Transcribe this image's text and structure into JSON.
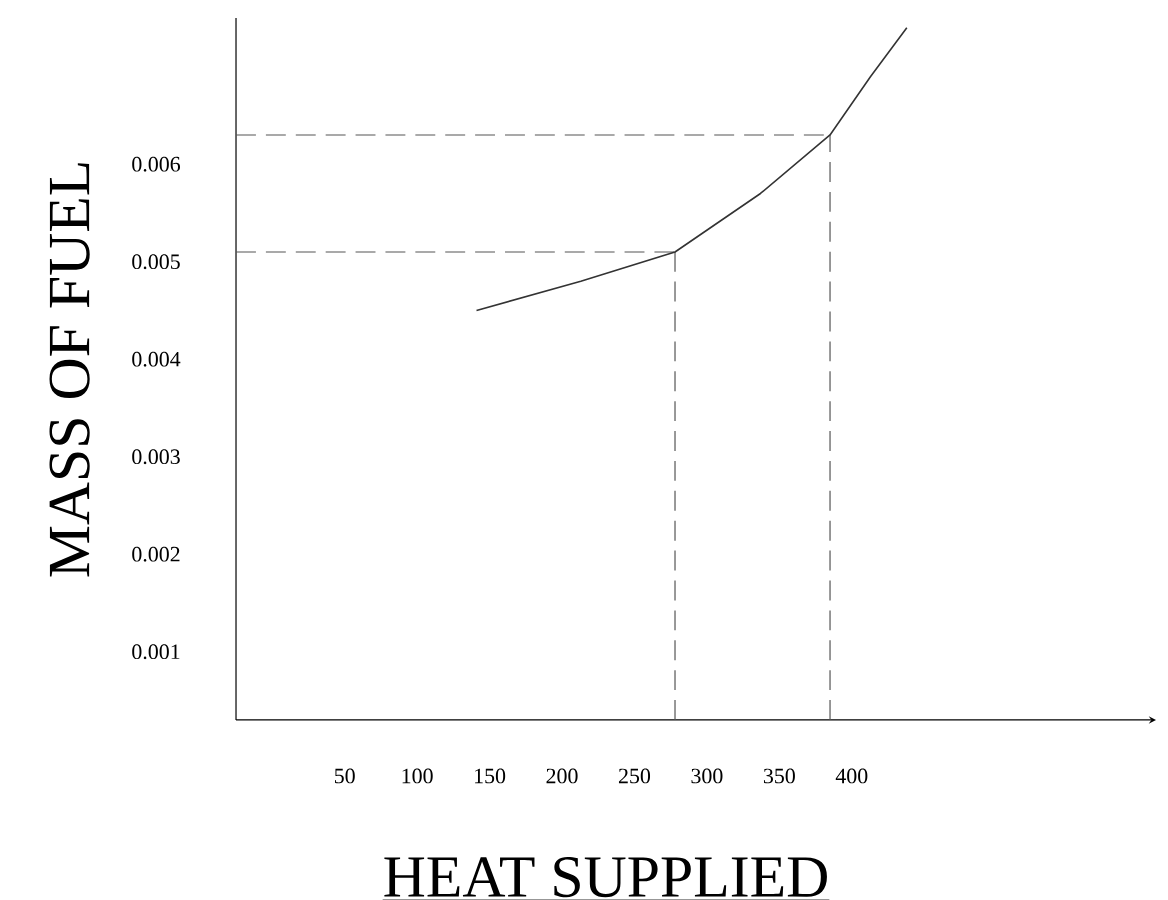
{
  "chart_data": {
    "type": "line",
    "xlabel": "HEAT SUPPLIED",
    "ylabel": "MASS OF FUEL",
    "xlim": [
      -25,
      610
    ],
    "ylim": [
      0.0003,
      0.0075
    ],
    "xticks": [
      50,
      100,
      150,
      200,
      250,
      300,
      350,
      400
    ],
    "yticks": [
      0.001,
      0.002,
      0.003,
      0.004,
      0.005,
      0.006
    ],
    "series": [
      {
        "color": "#333333",
        "x": [
          141,
          213,
          278,
          337,
          385,
          413,
          438
        ],
        "values": [
          0.0045,
          0.0048,
          0.0051,
          0.0057,
          0.0063,
          0.0069,
          0.0074
        ]
      }
    ],
    "ref_lines": [
      {
        "axis": "x",
        "value": 278,
        "line_style": "dashed",
        "color": "#555555"
      },
      {
        "axis": "x",
        "value": 385,
        "line_style": "dashed",
        "color": "#555555"
      },
      {
        "axis": "y",
        "value": 0.0051,
        "line_style": "dashed",
        "color": "#555555"
      },
      {
        "axis": "y",
        "value": 0.0063,
        "line_style": "dashed",
        "color": "#555555"
      }
    ],
    "grid": false,
    "marker": "none",
    "line_style": "solid"
  }
}
